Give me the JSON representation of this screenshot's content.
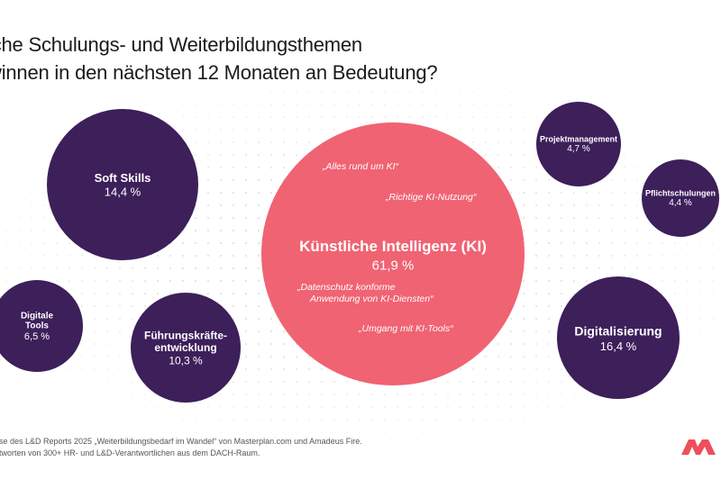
{
  "title_lines": [
    "lche Schulungs- und Weiterbildungsthemen",
    "winnen in den nächsten 12 Monaten an Bedeutung?"
  ],
  "footnote_lines": [
    "ase des L&D Reports 2025 „Weiterbildungsbedarf im Wandel“ von Masterplan.com und Amadeus Fire.",
    "ntworten von 300+ HR- und L&D-Verantwortlichen aus dem DACH-Raum."
  ],
  "colors": {
    "primary_bubble": "#3d1f5a",
    "highlight_bubble": "#f06373",
    "text_on_dark": "#ffffff",
    "logo": "#ef4f5c"
  },
  "logo_icon": "masterplan-logo-icon",
  "chart_data": {
    "type": "bubble",
    "unit": "%",
    "bubbles": [
      {
        "id": "ki",
        "label": "Künstliche Intelligenz (KI)",
        "value_label": "61,9 %",
        "value": 61.9,
        "highlight": true,
        "quotes": [
          "„Alles rund um KI“",
          "„Richtige KI-Nutzung“",
          "„Datenschutz konforme\nAnwendung von KI-Diensten“",
          "„Umgang mit KI-Tools“"
        ]
      },
      {
        "id": "digitalisierung",
        "label": "Digitalisierung",
        "value_label": "16,4 %",
        "value": 16.4
      },
      {
        "id": "soft-skills",
        "label": "Soft Skills",
        "value_label": "14,4 %",
        "value": 14.4
      },
      {
        "id": "fuehrung",
        "label": "Führungskräfte-\nentwicklung",
        "value_label": "10,3 %",
        "value": 10.3
      },
      {
        "id": "digitale-tools",
        "label": "Digitale\nTools",
        "value_label": "6,5 %",
        "value": 6.5
      },
      {
        "id": "projektmanagement",
        "label": "Projektmanagement",
        "value_label": "4,7 %",
        "value": 4.7
      },
      {
        "id": "pflichtschulungen",
        "label": "Pflichtschulungen",
        "value_label": "4,4 %",
        "value": 4.4
      }
    ]
  }
}
